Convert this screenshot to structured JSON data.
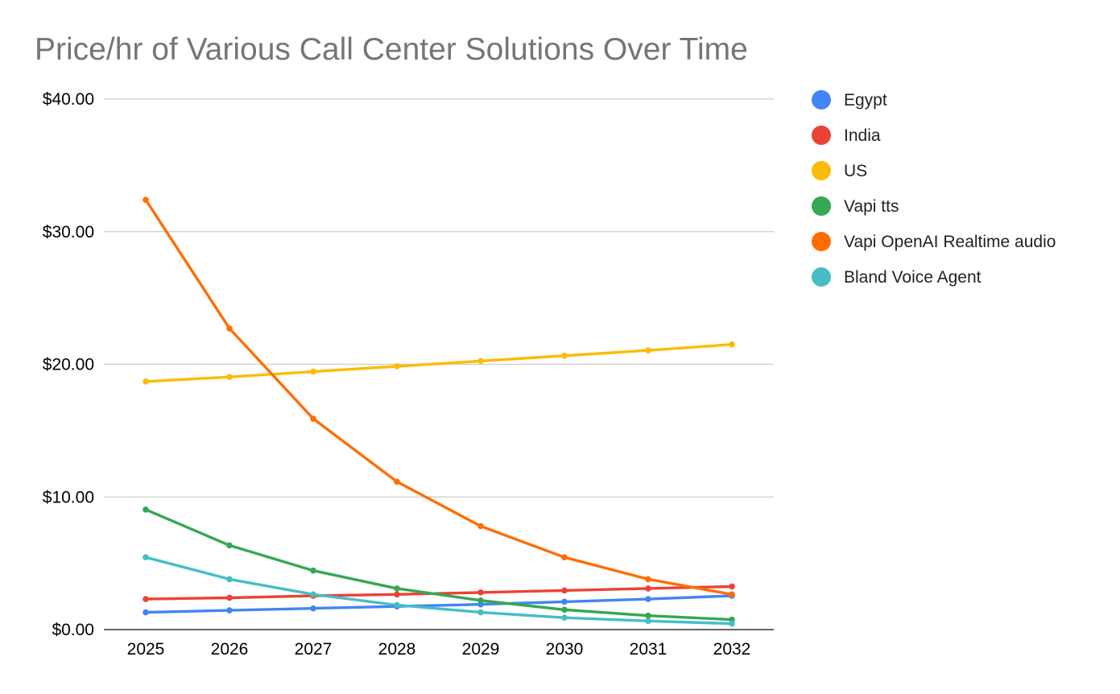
{
  "chart_data": {
    "type": "line",
    "title": "Price/hr of Various Call Center Solutions Over Time",
    "xlabel": "",
    "ylabel": "",
    "x": [
      "2025",
      "2026",
      "2027",
      "2028",
      "2029",
      "2030",
      "2031",
      "2032"
    ],
    "ylim": [
      0,
      40
    ],
    "yticks": [
      0,
      10,
      20,
      30,
      40
    ],
    "ytick_labels": [
      "$0.00",
      "$10.00",
      "$20.00",
      "$30.00",
      "$40.00"
    ],
    "grid": true,
    "legend_position": "right",
    "series": [
      {
        "name": "Egypt",
        "color": "#4285f4",
        "values": [
          1.3,
          1.45,
          1.6,
          1.75,
          1.9,
          2.1,
          2.3,
          2.55
        ]
      },
      {
        "name": "India",
        "color": "#ea4335",
        "values": [
          2.3,
          2.4,
          2.55,
          2.65,
          2.8,
          2.95,
          3.1,
          3.25
        ]
      },
      {
        "name": "US",
        "color": "#fbbc04",
        "values": [
          18.7,
          19.05,
          19.45,
          19.85,
          20.25,
          20.65,
          21.05,
          21.5
        ]
      },
      {
        "name": "Vapi tts",
        "color": "#34a853",
        "values": [
          9.05,
          6.35,
          4.45,
          3.1,
          2.2,
          1.5,
          1.05,
          0.75
        ]
      },
      {
        "name": "Vapi OpenAI Realtime audio",
        "color": "#ff6d01",
        "values": [
          32.4,
          22.7,
          15.9,
          11.15,
          7.8,
          5.45,
          3.8,
          2.65
        ]
      },
      {
        "name": "Bland Voice Agent",
        "color": "#46bdc6",
        "values": [
          5.45,
          3.8,
          2.65,
          1.85,
          1.3,
          0.9,
          0.65,
          0.45
        ]
      }
    ]
  }
}
